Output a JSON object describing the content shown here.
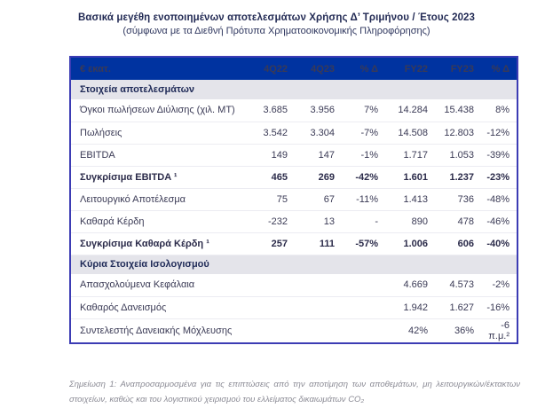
{
  "title": "Βασικά μεγέθη ενοποιημένων αποτελεσμάτων Χρήσης Δ’ Τριμήνου / Έτους 2023",
  "subtitle": "(σύμφωνα με τα Διεθνή Πρότυπα Χρηματοοικονομικής Πληροφόρησης)",
  "colors": {
    "header_bg": "#0033A0",
    "header_text": "#FFFFFF",
    "section_bg": "#E4E4EA",
    "table_border": "#3C3CB4",
    "title_text": "#232B55",
    "footnote_text": "#8B8B95"
  },
  "table": {
    "unit_header": "€ εκατ.",
    "columns": [
      "4Q22",
      "4Q23",
      "% Δ",
      "FY22",
      "FY23",
      "% Δ"
    ],
    "sections": [
      "Στοιχεία αποτελεσμάτων",
      "Κύρια Στοιχεία Ισολογισμού"
    ],
    "rows": [
      {
        "label": "Όγκοι πωλήσεων Διύλισης (χιλ. ΜΤ)",
        "v": [
          "3.685",
          "3.956",
          "7%",
          "14.284",
          "15.438",
          "8%"
        ]
      },
      {
        "label": "Πωλήσεις",
        "v": [
          "3.542",
          "3.304",
          "-7%",
          "14.508",
          "12.803",
          "-12%"
        ]
      },
      {
        "label": "EBITDA",
        "v": [
          "149",
          "147",
          "-1%",
          "1.717",
          "1.053",
          "-39%"
        ]
      },
      {
        "label": "Συγκρίσιμα EBITDA ¹",
        "v": [
          "465",
          "269",
          "-42%",
          "1.601",
          "1.237",
          "-23%"
        ]
      },
      {
        "label": "Λειτουργικό Αποτέλεσμα",
        "v": [
          "75",
          "67",
          "-11%",
          "1.413",
          "736",
          "-48%"
        ]
      },
      {
        "label": "Καθαρά Κέρδη",
        "v": [
          "-232",
          "13",
          "-",
          "890",
          "478",
          "-46%"
        ]
      },
      {
        "label": "Συγκρίσιμα Καθαρά Κέρδη ¹",
        "v": [
          "257",
          "111",
          "-57%",
          "1.006",
          "606",
          "-40%"
        ]
      },
      {
        "label": "Απασχολούμενα Κεφάλαια",
        "v": [
          "",
          "",
          "",
          "4.669",
          "4.573",
          "-2%"
        ]
      },
      {
        "label": "Καθαρός Δανεισμός",
        "v": [
          "",
          "",
          "",
          "1.942",
          "1.627",
          "-16%"
        ]
      },
      {
        "label": "Συντελεστής Δανειακής Μόχλευσης",
        "v": [
          "",
          "",
          "",
          "42%",
          "36%",
          "-6 π.μ.²"
        ]
      }
    ]
  },
  "footnote": "Σημείωση 1: Αναπροσαρμοσμένα για τις επιπτώσεις από την αποτίμηση των αποθεμάτων, μη λειτουργικών/έκτακτων στοιχείων, καθώς και του λογιστικού χειρισμού του ελλείματος δικαιωμάτων CO₂"
}
